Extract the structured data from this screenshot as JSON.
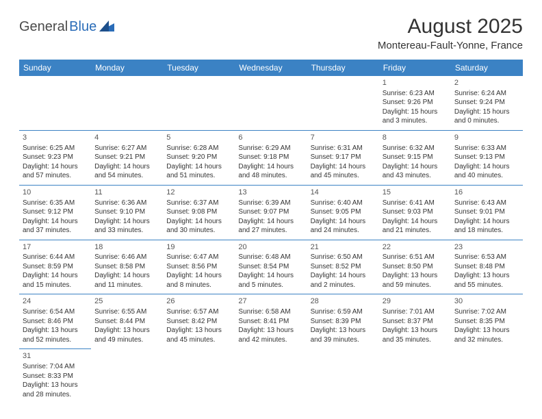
{
  "logo": {
    "textGray": "General",
    "textBlue": "Blue"
  },
  "title": "August 2025",
  "location": "Montereau-Fault-Yonne, France",
  "colors": {
    "headerBg": "#3b82c4",
    "headerText": "#ffffff",
    "border": "#3b82c4",
    "text": "#333333",
    "logoBlue": "#2a6cb8"
  },
  "dayHeaders": [
    "Sunday",
    "Monday",
    "Tuesday",
    "Wednesday",
    "Thursday",
    "Friday",
    "Saturday"
  ],
  "weeks": [
    [
      null,
      null,
      null,
      null,
      null,
      {
        "n": "1",
        "sr": "Sunrise: 6:23 AM",
        "ss": "Sunset: 9:26 PM",
        "dl": "Daylight: 15 hours and 3 minutes."
      },
      {
        "n": "2",
        "sr": "Sunrise: 6:24 AM",
        "ss": "Sunset: 9:24 PM",
        "dl": "Daylight: 15 hours and 0 minutes."
      }
    ],
    [
      {
        "n": "3",
        "sr": "Sunrise: 6:25 AM",
        "ss": "Sunset: 9:23 PM",
        "dl": "Daylight: 14 hours and 57 minutes."
      },
      {
        "n": "4",
        "sr": "Sunrise: 6:27 AM",
        "ss": "Sunset: 9:21 PM",
        "dl": "Daylight: 14 hours and 54 minutes."
      },
      {
        "n": "5",
        "sr": "Sunrise: 6:28 AM",
        "ss": "Sunset: 9:20 PM",
        "dl": "Daylight: 14 hours and 51 minutes."
      },
      {
        "n": "6",
        "sr": "Sunrise: 6:29 AM",
        "ss": "Sunset: 9:18 PM",
        "dl": "Daylight: 14 hours and 48 minutes."
      },
      {
        "n": "7",
        "sr": "Sunrise: 6:31 AM",
        "ss": "Sunset: 9:17 PM",
        "dl": "Daylight: 14 hours and 45 minutes."
      },
      {
        "n": "8",
        "sr": "Sunrise: 6:32 AM",
        "ss": "Sunset: 9:15 PM",
        "dl": "Daylight: 14 hours and 43 minutes."
      },
      {
        "n": "9",
        "sr": "Sunrise: 6:33 AM",
        "ss": "Sunset: 9:13 PM",
        "dl": "Daylight: 14 hours and 40 minutes."
      }
    ],
    [
      {
        "n": "10",
        "sr": "Sunrise: 6:35 AM",
        "ss": "Sunset: 9:12 PM",
        "dl": "Daylight: 14 hours and 37 minutes."
      },
      {
        "n": "11",
        "sr": "Sunrise: 6:36 AM",
        "ss": "Sunset: 9:10 PM",
        "dl": "Daylight: 14 hours and 33 minutes."
      },
      {
        "n": "12",
        "sr": "Sunrise: 6:37 AM",
        "ss": "Sunset: 9:08 PM",
        "dl": "Daylight: 14 hours and 30 minutes."
      },
      {
        "n": "13",
        "sr": "Sunrise: 6:39 AM",
        "ss": "Sunset: 9:07 PM",
        "dl": "Daylight: 14 hours and 27 minutes."
      },
      {
        "n": "14",
        "sr": "Sunrise: 6:40 AM",
        "ss": "Sunset: 9:05 PM",
        "dl": "Daylight: 14 hours and 24 minutes."
      },
      {
        "n": "15",
        "sr": "Sunrise: 6:41 AM",
        "ss": "Sunset: 9:03 PM",
        "dl": "Daylight: 14 hours and 21 minutes."
      },
      {
        "n": "16",
        "sr": "Sunrise: 6:43 AM",
        "ss": "Sunset: 9:01 PM",
        "dl": "Daylight: 14 hours and 18 minutes."
      }
    ],
    [
      {
        "n": "17",
        "sr": "Sunrise: 6:44 AM",
        "ss": "Sunset: 8:59 PM",
        "dl": "Daylight: 14 hours and 15 minutes."
      },
      {
        "n": "18",
        "sr": "Sunrise: 6:46 AM",
        "ss": "Sunset: 8:58 PM",
        "dl": "Daylight: 14 hours and 11 minutes."
      },
      {
        "n": "19",
        "sr": "Sunrise: 6:47 AM",
        "ss": "Sunset: 8:56 PM",
        "dl": "Daylight: 14 hours and 8 minutes."
      },
      {
        "n": "20",
        "sr": "Sunrise: 6:48 AM",
        "ss": "Sunset: 8:54 PM",
        "dl": "Daylight: 14 hours and 5 minutes."
      },
      {
        "n": "21",
        "sr": "Sunrise: 6:50 AM",
        "ss": "Sunset: 8:52 PM",
        "dl": "Daylight: 14 hours and 2 minutes."
      },
      {
        "n": "22",
        "sr": "Sunrise: 6:51 AM",
        "ss": "Sunset: 8:50 PM",
        "dl": "Daylight: 13 hours and 59 minutes."
      },
      {
        "n": "23",
        "sr": "Sunrise: 6:53 AM",
        "ss": "Sunset: 8:48 PM",
        "dl": "Daylight: 13 hours and 55 minutes."
      }
    ],
    [
      {
        "n": "24",
        "sr": "Sunrise: 6:54 AM",
        "ss": "Sunset: 8:46 PM",
        "dl": "Daylight: 13 hours and 52 minutes."
      },
      {
        "n": "25",
        "sr": "Sunrise: 6:55 AM",
        "ss": "Sunset: 8:44 PM",
        "dl": "Daylight: 13 hours and 49 minutes."
      },
      {
        "n": "26",
        "sr": "Sunrise: 6:57 AM",
        "ss": "Sunset: 8:42 PM",
        "dl": "Daylight: 13 hours and 45 minutes."
      },
      {
        "n": "27",
        "sr": "Sunrise: 6:58 AM",
        "ss": "Sunset: 8:41 PM",
        "dl": "Daylight: 13 hours and 42 minutes."
      },
      {
        "n": "28",
        "sr": "Sunrise: 6:59 AM",
        "ss": "Sunset: 8:39 PM",
        "dl": "Daylight: 13 hours and 39 minutes."
      },
      {
        "n": "29",
        "sr": "Sunrise: 7:01 AM",
        "ss": "Sunset: 8:37 PM",
        "dl": "Daylight: 13 hours and 35 minutes."
      },
      {
        "n": "30",
        "sr": "Sunrise: 7:02 AM",
        "ss": "Sunset: 8:35 PM",
        "dl": "Daylight: 13 hours and 32 minutes."
      }
    ],
    [
      {
        "n": "31",
        "sr": "Sunrise: 7:04 AM",
        "ss": "Sunset: 8:33 PM",
        "dl": "Daylight: 13 hours and 28 minutes."
      },
      null,
      null,
      null,
      null,
      null,
      null
    ]
  ]
}
